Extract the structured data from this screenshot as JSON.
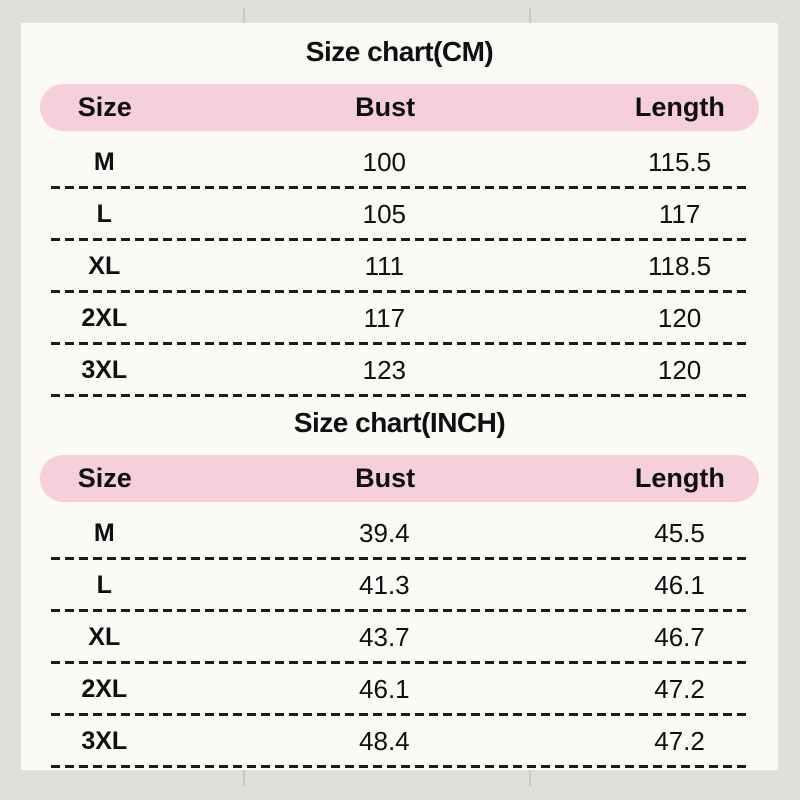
{
  "colors": {
    "page_bg": "#e0dfda",
    "card_bg": "#fbfaf6",
    "header_pink": "#f5cfda",
    "text": "#0f0f0f",
    "dash": "#1c1c1c",
    "tick": "#cac9c3"
  },
  "sections": [
    {
      "title": "Size chart(CM)",
      "columns": [
        "Size",
        "Bust",
        "Length"
      ],
      "rows": [
        {
          "size": "M",
          "bust": "100",
          "length": "115.5"
        },
        {
          "size": "L",
          "bust": "105",
          "length": "117"
        },
        {
          "size": "XL",
          "bust": "111",
          "length": "118.5"
        },
        {
          "size": "2XL",
          "bust": "117",
          "length": "120"
        },
        {
          "size": "3XL",
          "bust": "123",
          "length": "120"
        }
      ]
    },
    {
      "title": "Size chart(INCH)",
      "columns": [
        "Size",
        "Bust",
        "Length"
      ],
      "rows": [
        {
          "size": "M",
          "bust": "39.4",
          "length": "45.5"
        },
        {
          "size": "L",
          "bust": "41.3",
          "length": "46.1"
        },
        {
          "size": "XL",
          "bust": "43.7",
          "length": "46.7"
        },
        {
          "size": "2XL",
          "bust": "46.1",
          "length": "47.2"
        },
        {
          "size": "3XL",
          "bust": "48.4",
          "length": "47.2"
        }
      ]
    }
  ],
  "chart_data": [
    {
      "type": "table",
      "title": "Size chart(CM)",
      "columns": [
        "Size",
        "Bust",
        "Length"
      ],
      "rows": [
        [
          "M",
          100,
          115.5
        ],
        [
          "L",
          105,
          117
        ],
        [
          "XL",
          111,
          118.5
        ],
        [
          "2XL",
          117,
          120
        ],
        [
          "3XL",
          123,
          120
        ]
      ]
    },
    {
      "type": "table",
      "title": "Size chart(INCH)",
      "columns": [
        "Size",
        "Bust",
        "Length"
      ],
      "rows": [
        [
          "M",
          39.4,
          45.5
        ],
        [
          "L",
          41.3,
          46.1
        ],
        [
          "XL",
          43.7,
          46.7
        ],
        [
          "2XL",
          46.1,
          47.2
        ],
        [
          "3XL",
          48.4,
          47.2
        ]
      ]
    }
  ]
}
